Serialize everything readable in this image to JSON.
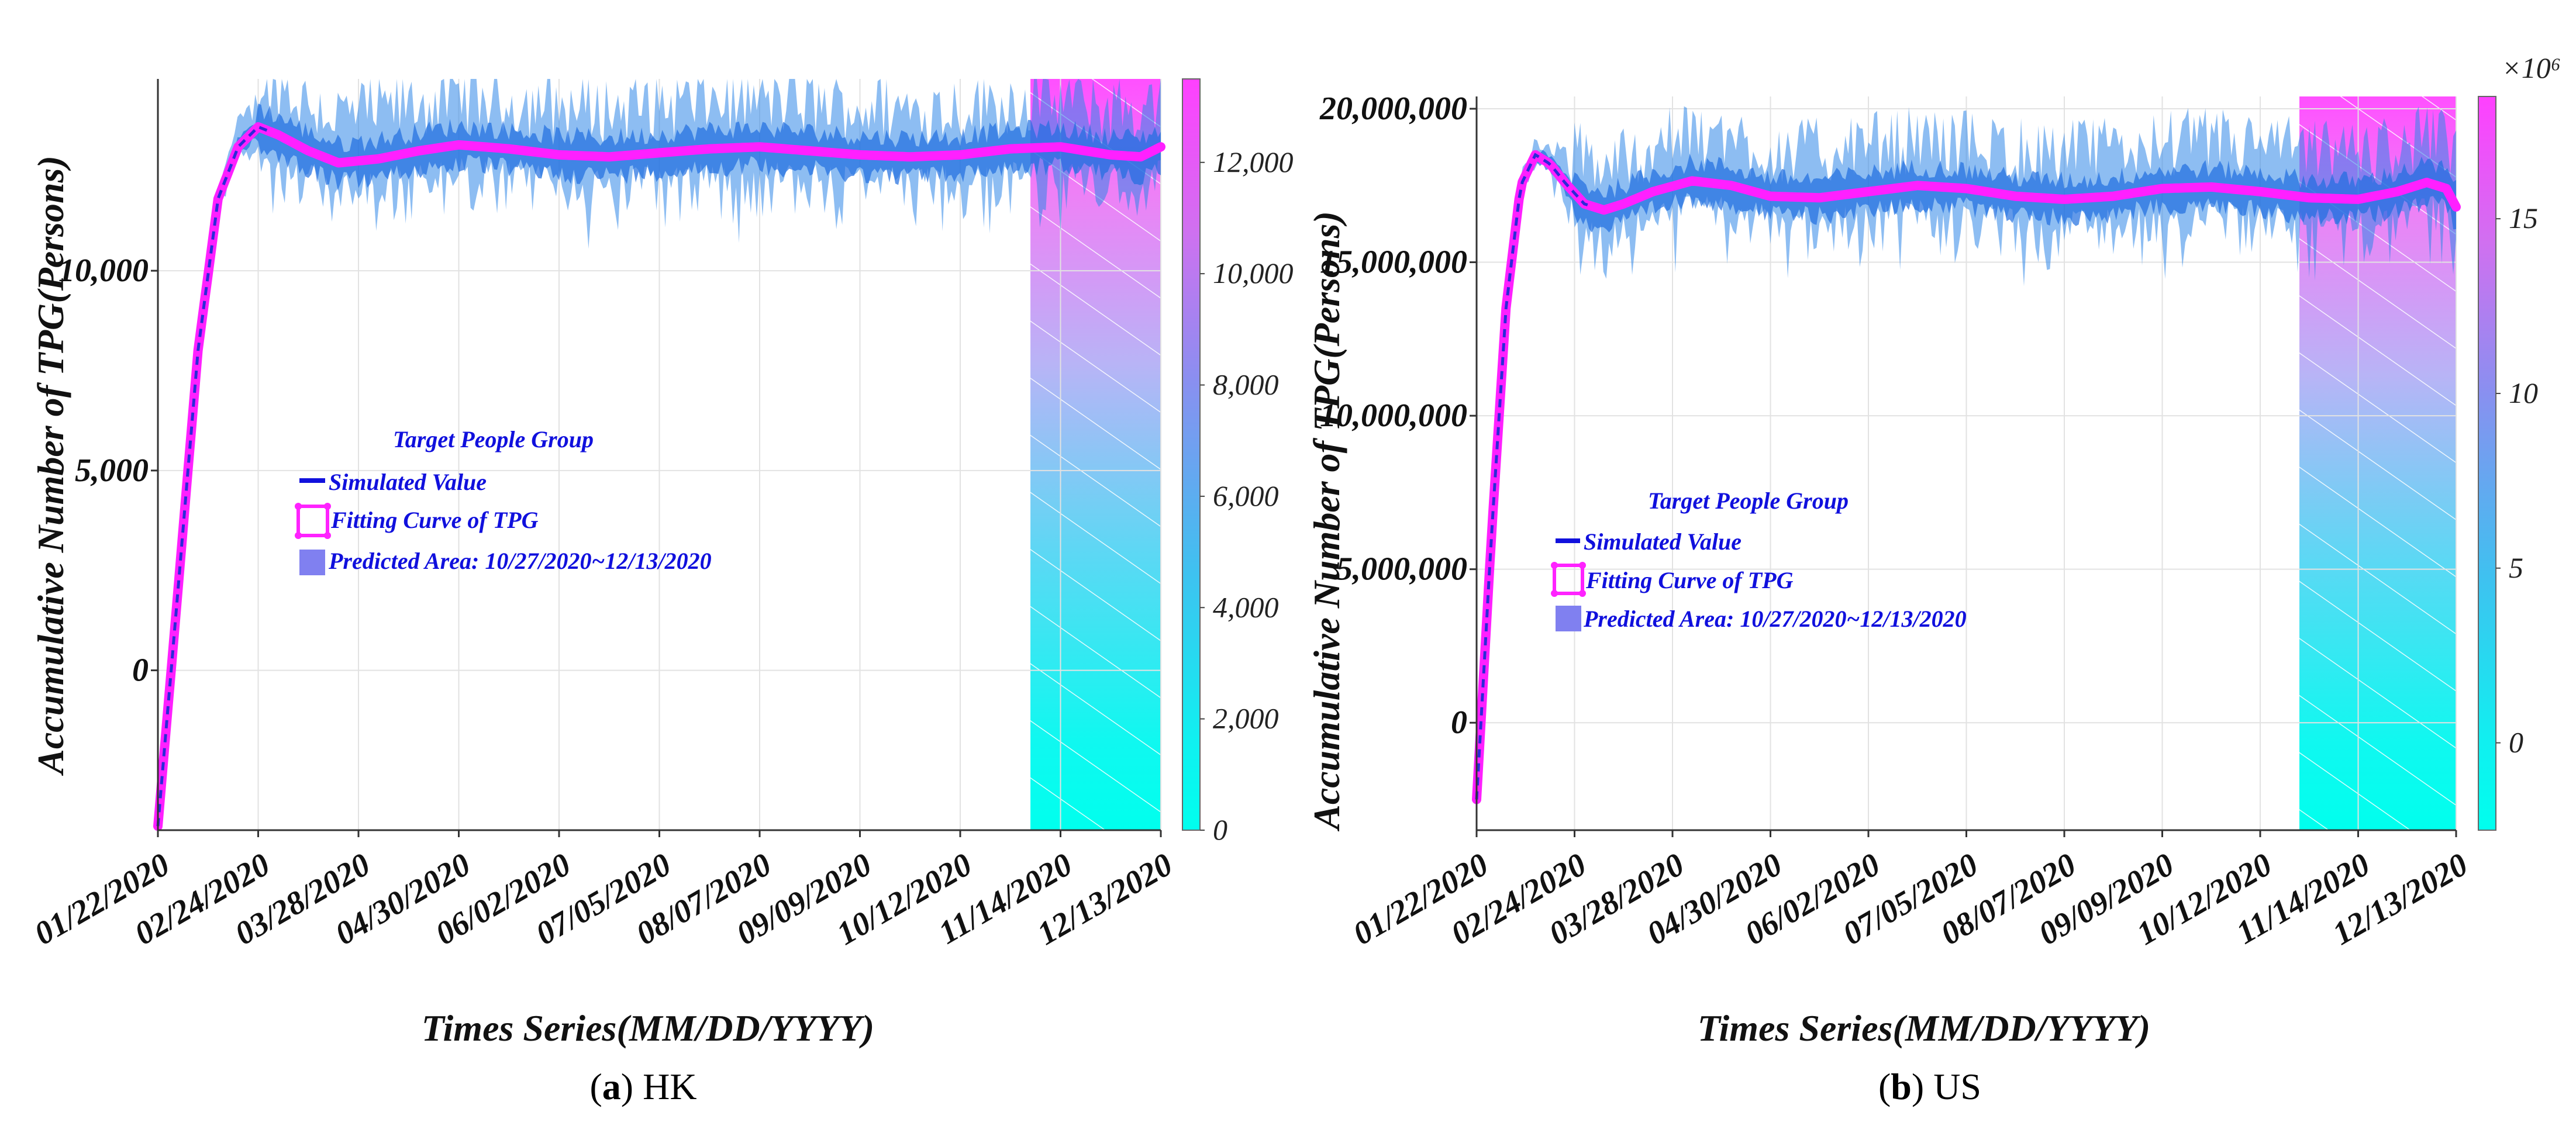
{
  "chart_data": [
    {
      "type": "line",
      "panel": "HK",
      "caption_letter": "a",
      "caption_text": "HK",
      "ylabel": "Accumulative Number of TPG(Persons)",
      "xlabel": "Times Series(MM/DD/YYYY)",
      "x_tick_labels": [
        "01/22/2020",
        "02/24/2020",
        "03/28/2020",
        "04/30/2020",
        "06/02/2020",
        "07/05/2020",
        "08/07/2020",
        "09/09/2020",
        "10/12/2020",
        "11/14/2020",
        "12/13/2020"
      ],
      "y_ticks": [
        0,
        5000,
        10000
      ],
      "y_tick_labels": [
        "0",
        "5,000",
        "10,000"
      ],
      "ylim": [
        -4000,
        14800
      ],
      "colorbar_ticks": [
        0,
        2000,
        4000,
        6000,
        8000,
        10000,
        12000
      ],
      "colorbar_tick_labels": [
        "0",
        "2,000",
        "4,000",
        "6,000",
        "8,000",
        "10,000",
        "12,000"
      ],
      "colorbar_range": [
        0,
        13500
      ],
      "colorbar_exponent": "",
      "predicted_area_start_index": 8.7,
      "legend": {
        "title": "Target People Group",
        "items": [
          "Simulated Value",
          "Fitting Curve of TPG",
          "Predicted Area: 10/27/2020~12/13/2020"
        ]
      },
      "series": [
        {
          "name": "Fitting Curve of TPG",
          "x": [
            0,
            0.2,
            0.4,
            0.6,
            0.8,
            1.0,
            1.2,
            1.5,
            1.8,
            2.2,
            2.6,
            3.0,
            3.5,
            4.0,
            4.5,
            5.0,
            5.5,
            6.0,
            6.5,
            7.0,
            7.5,
            8.0,
            8.5,
            9.0,
            9.5,
            9.8,
            10.0
          ],
          "values": [
            -3900,
            2000,
            8000,
            11800,
            13100,
            13600,
            13400,
            13000,
            12700,
            12800,
            13000,
            13150,
            13050,
            12900,
            12850,
            12950,
            13050,
            13100,
            13000,
            12900,
            12850,
            12900,
            13050,
            13100,
            12900,
            12850,
            13100
          ]
        }
      ]
    },
    {
      "type": "line",
      "panel": "US",
      "caption_letter": "b",
      "caption_text": "US",
      "ylabel": "Accumulative Number of TPG(Persons)",
      "xlabel": "Times Series(MM/DD/YYYY)",
      "x_tick_labels": [
        "01/22/2020",
        "02/24/2020",
        "03/28/2020",
        "04/30/2020",
        "06/02/2020",
        "07/05/2020",
        "08/07/2020",
        "09/09/2020",
        "10/12/2020",
        "11/14/2020",
        "12/13/2020"
      ],
      "y_ticks": [
        0,
        5000000,
        10000000,
        15000000,
        20000000
      ],
      "y_tick_labels": [
        "0",
        "5,000,000",
        "10,000,000",
        "15,000,000",
        "20,000,000"
      ],
      "ylim": [
        -3500000,
        20400000
      ],
      "colorbar_ticks": [
        0,
        5,
        10,
        15
      ],
      "colorbar_tick_labels": [
        "0",
        "5",
        "10",
        "15"
      ],
      "colorbar_range": [
        -2.5,
        18.5
      ],
      "colorbar_exponent": "×10⁶",
      "predicted_area_start_index": 8.4,
      "legend": {
        "title": "Target People Group",
        "items": [
          "Simulated Value",
          "Fitting Curve of TPG",
          "Predicted Area: 10/27/2020~12/13/2020"
        ]
      },
      "series": [
        {
          "name": "Fitting Curve of TPG",
          "x": [
            0,
            0.15,
            0.3,
            0.45,
            0.6,
            0.75,
            0.9,
            1.1,
            1.3,
            1.5,
            1.8,
            2.2,
            2.6,
            3.0,
            3.5,
            4.0,
            4.5,
            5.0,
            5.5,
            6.0,
            6.5,
            7.0,
            7.5,
            8.0,
            8.5,
            9.0,
            9.4,
            9.7,
            9.9,
            10.0
          ],
          "values": [
            -2500000,
            6000000,
            13500000,
            17500000,
            18500000,
            18200000,
            17600000,
            16900000,
            16700000,
            16900000,
            17300000,
            17650000,
            17500000,
            17150000,
            17100000,
            17300000,
            17500000,
            17400000,
            17150000,
            17050000,
            17150000,
            17400000,
            17450000,
            17300000,
            17100000,
            17050000,
            17300000,
            17600000,
            17400000,
            16800000
          ]
        }
      ]
    }
  ]
}
